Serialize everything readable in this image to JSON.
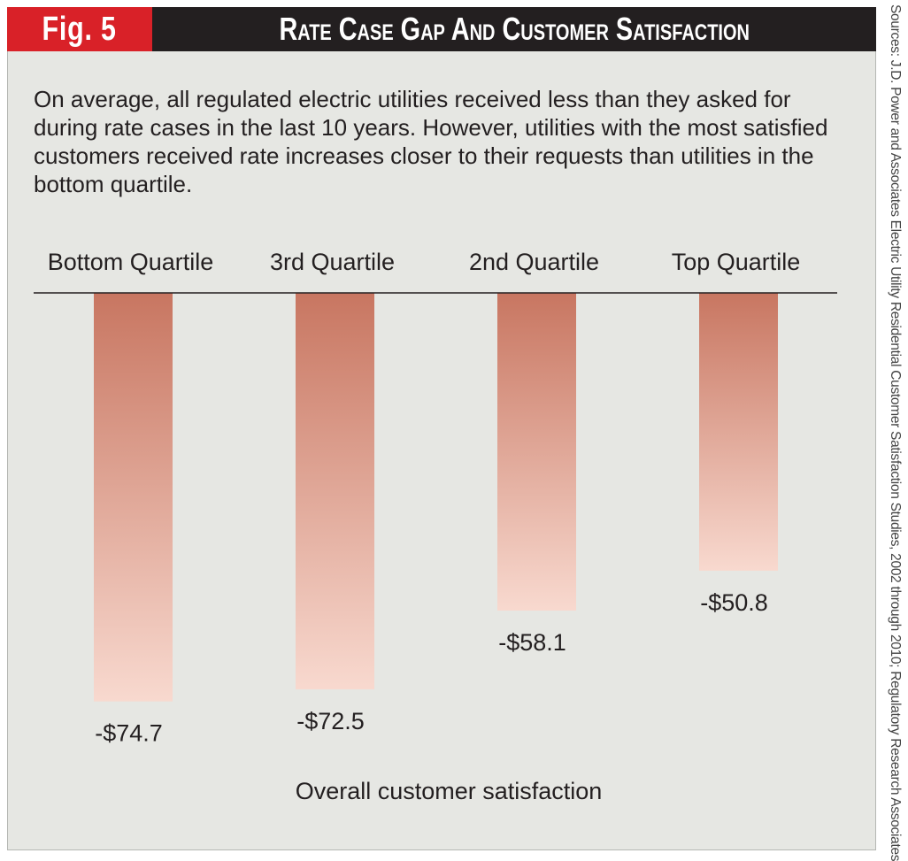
{
  "header": {
    "fig_label": "Fig. 5",
    "title": "Rate Case Gap And Customer Satisfaction"
  },
  "description": "On average, all regulated electric utilities received less than they asked for during rate cases in the last 10 years. However, utilities with the most satisfied customers received rate increases closer to their requests than utilities in the bottom quartile.",
  "source": "Sources: J.D. Power and Associates  Electric Utility Residential Customer Satisfaction Studies, 2002 through 2010; Regulatory Research Associates",
  "colors": {
    "fig_red": "#d92128",
    "title_black": "#231f20",
    "bar_top": "#c87661",
    "bar_bottom": "#f8d9cf",
    "panel": "#e6e7e3"
  },
  "chart_data": {
    "type": "bar",
    "categories": [
      "Bottom Quartile",
      "3rd Quartile",
      "2nd Quartile",
      "Top Quartile"
    ],
    "values": [
      -74.7,
      -72.5,
      -58.1,
      -50.8
    ],
    "data_labels": [
      "-$74.7",
      "-$72.5",
      "-$58.1",
      "-$50.8"
    ],
    "title": "Rate Case Gap And Customer Satisfaction",
    "xlabel": "Overall customer satisfaction",
    "ylabel": "",
    "ylim": [
      -80,
      0
    ],
    "grid": false,
    "category_labels_position": "top"
  }
}
